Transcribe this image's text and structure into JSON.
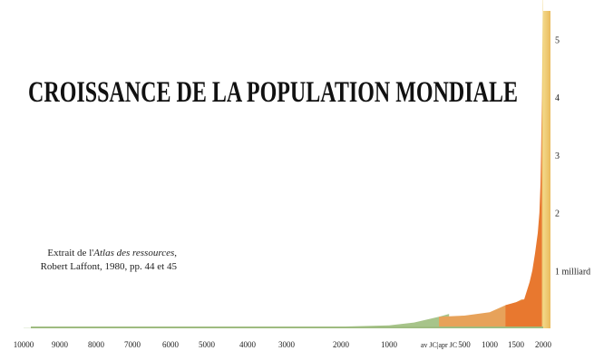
{
  "chart_data": {
    "type": "area",
    "title": "CROISSANCE DE LA POPULATION MONDIALE",
    "source": {
      "prefix": "Extrait de l'",
      "book": "Atlas des ressources",
      "suffix": ",",
      "line2": "Robert Laffont, 1980, pp. 44 et 45"
    },
    "x_tick_labels": [
      "10000",
      "9000",
      "8000",
      "7000",
      "6000",
      "5000",
      "4000",
      "3000",
      "2000",
      "1000",
      "av JC|apr JC",
      "500",
      "1000",
      "1500",
      "2000"
    ],
    "y_tick_labels": [
      {
        "label": "1 milliard",
        "value": 1
      },
      {
        "label": "2",
        "value": 2
      },
      {
        "label": "3",
        "value": 3
      },
      {
        "label": "4",
        "value": 4
      },
      {
        "label": "5",
        "value": 5
      }
    ],
    "ylim": [
      0,
      5.4
    ],
    "series": [
      {
        "color": "#a7c48a",
        "points": [
          [
            -10000,
            0.005
          ],
          [
            -8000,
            0.006
          ],
          [
            -6000,
            0.008
          ],
          [
            -5000,
            0.01
          ],
          [
            -4000,
            0.015
          ],
          [
            -3000,
            0.02
          ],
          [
            -2000,
            0.03
          ],
          [
            -1000,
            0.05
          ],
          [
            -500,
            0.1
          ],
          [
            0,
            0.2
          ],
          [
            200,
            0.25
          ]
        ]
      },
      {
        "color": "#e7a25a",
        "points": [
          [
            0,
            0.2
          ],
          [
            500,
            0.22
          ],
          [
            1000,
            0.28
          ],
          [
            1300,
            0.4
          ],
          [
            1500,
            0.45
          ],
          [
            1600,
            0.5
          ],
          [
            1650,
            0.5
          ]
        ]
      },
      {
        "color": "#e8782f",
        "points": [
          [
            1300,
            0.4
          ],
          [
            1500,
            0.45
          ],
          [
            1650,
            0.5
          ],
          [
            1750,
            0.8
          ],
          [
            1800,
            1.0
          ],
          [
            1850,
            1.3
          ],
          [
            1900,
            1.65
          ],
          [
            1930,
            2.0
          ],
          [
            1950,
            2.5
          ],
          [
            1960,
            3.0
          ],
          [
            1975,
            4.0
          ],
          [
            1980,
            4.4
          ]
        ]
      },
      {
        "color": "#efcf74",
        "points": [
          [
            1980,
            4.4
          ],
          [
            1990,
            5.3
          ],
          [
            2000,
            6.1
          ]
        ]
      }
    ]
  }
}
